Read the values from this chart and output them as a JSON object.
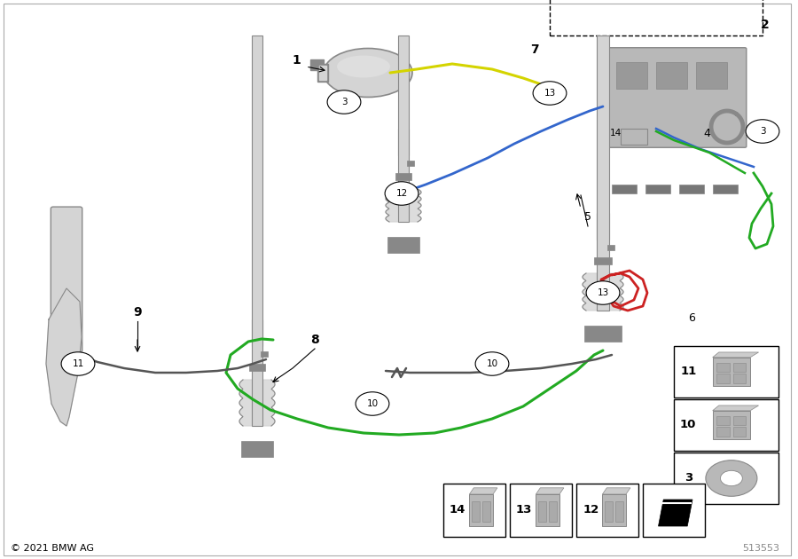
{
  "background_color": "#ffffff",
  "copyright": "© 2021 BMW AG",
  "diagram_number": "513553",
  "line_yellow": "#d4d400",
  "line_blue": "#3366cc",
  "line_green": "#22aa22",
  "line_red": "#cc2222",
  "line_dark": "#555555",
  "gray_part": "#b8b8b8",
  "gray_dark": "#888888",
  "gray_light": "#d4d4d4"
}
